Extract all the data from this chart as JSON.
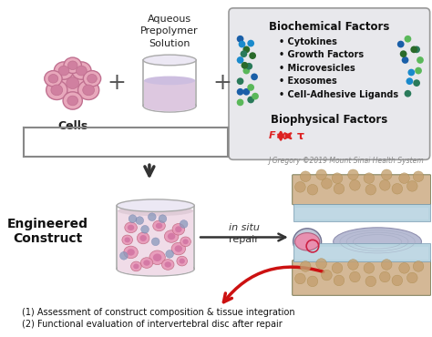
{
  "bg_color": "#ffffff",
  "title_line1": "(1) Assessment of construct composition & tissue integration",
  "title_line2": "(2) Functional evaluation of intervertebral disc after repair",
  "cells_label": "Cells",
  "solution_label": [
    "Aqueous",
    "Prepolymer",
    "Solution"
  ],
  "biochem_title": "Biochemical Factors",
  "biochem_items": [
    "• Cytokines",
    "• Growth Factors",
    "• Microvesicles",
    "• Exosomes",
    "• Cell-Adhesive Ligands"
  ],
  "biophys_title": "Biophysical Factors",
  "copyright": "J Gregory ©2019 Mount Sinai Health System",
  "engineered_label_1": "Engineered",
  "engineered_label_2": "Construct",
  "in_situ_1": "in situ",
  "in_situ_2": "repair",
  "biophys_arrow_color": "#dd2222",
  "red_arrow_color": "#cc1111",
  "bracket_color": "#888888",
  "arrow_color": "#444444",
  "plus_color": "#555555",
  "box_bg_color": "#e8e8ec",
  "cell_face": "#e8a8bc",
  "cell_edge": "#c07090",
  "cell_nuc": "#d080a0",
  "beaker_face": "#f8f4fc",
  "beaker_edge": "#aaaaaa",
  "liquid_face": "#ddc8e0",
  "bone_face": "#d4b896",
  "bone_circle": "#c4a070",
  "cart_face": "#b8d4e0",
  "np_face": "#b8bcd4",
  "insert_face": "#e890b0",
  "construct_liquid": "#f0dce8",
  "dot_blue1": "#1a5fa8",
  "dot_blue2": "#1a8acc",
  "dot_green1": "#2a6a2a",
  "dot_green2": "#5ab85a",
  "dot_teal": "#2a7a5a"
}
